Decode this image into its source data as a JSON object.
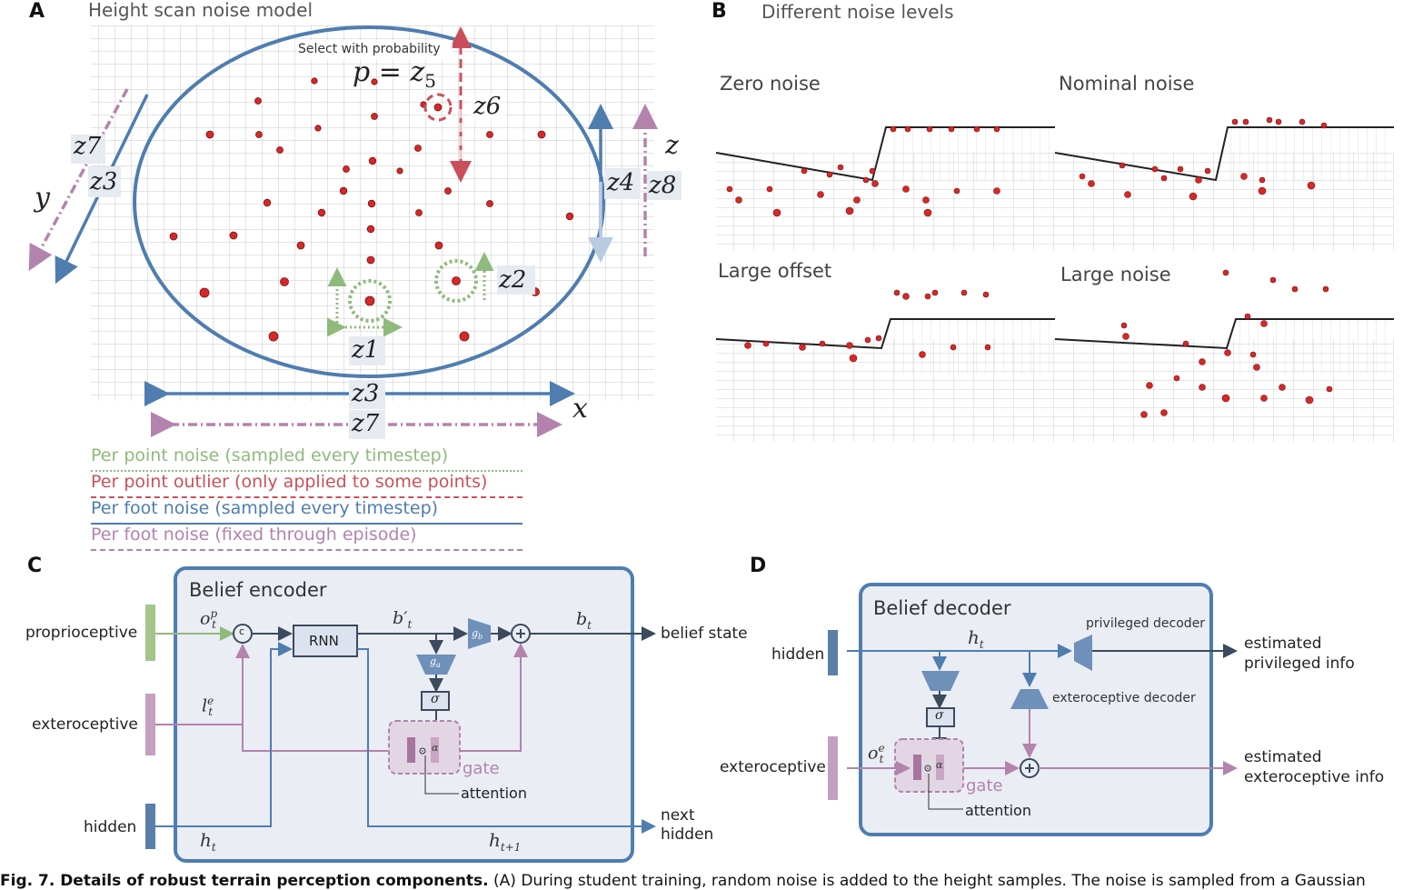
{
  "panel_a": {
    "letter": "A",
    "title": "Height scan noise model",
    "select_text": "Select with probability",
    "p_label": "p = z",
    "p_sub": "5",
    "z_labels": {
      "z6": "z6",
      "z7_left": "z7",
      "z3_left": "z3",
      "z4": "z4",
      "z8": "z8",
      "z2": "z2",
      "z1": "z1",
      "z3_bottom": "z3",
      "z7_bottom": "z7"
    },
    "axes": {
      "x": "x",
      "y": "y",
      "z": "z"
    },
    "legend": [
      {
        "label": "Per point noise (sampled every timestep)",
        "color": "#8fba7c",
        "style": "dotted"
      },
      {
        "label": "Per point outlier (only applied to some points)",
        "color": "#c9505a",
        "style": "dashed"
      },
      {
        "label": "Per foot noise (sampled every timestep)",
        "color": "#4f7db0",
        "style": "solid"
      },
      {
        "label": "Per foot noise (fixed through episode)",
        "color": "#b383ae",
        "style": "dashdot"
      }
    ]
  },
  "panel_b": {
    "letter": "B",
    "title": "Different noise levels",
    "quadrants": [
      "Zero noise",
      "Nominal noise",
      "Large offset",
      "Large noise"
    ]
  },
  "panel_c": {
    "letter": "C",
    "box_title": "Belief encoder",
    "inputs": [
      "proprioceptive",
      "exteroceptive",
      "hidden"
    ],
    "rnn": "RNN",
    "concat": "c",
    "sigma": "σ",
    "alpha": "α",
    "gate": "gate",
    "attention": "attention",
    "g_a": "g",
    "g_a_sub": "a",
    "g_b": "g",
    "g_b_sub": "b",
    "o_t_p": "o",
    "l_t_e": "l",
    "b_t_prime": "b′",
    "b_t": "b",
    "h_t": "h",
    "h_t1": "h",
    "sub_t": "t",
    "sub_t1": "t+1",
    "sup_p": "p",
    "sup_e": "e",
    "outputs": [
      "belief state",
      "next",
      "hidden"
    ]
  },
  "panel_d": {
    "letter": "D",
    "box_title": "Belief decoder",
    "inputs": [
      "hidden",
      "exteroceptive"
    ],
    "privileged_decoder": "privileged decoder",
    "exteroceptive_decoder": "exteroceptive decoder",
    "sigma": "σ",
    "alpha": "α",
    "gate": "gate",
    "attention": "attention",
    "h_t": "h",
    "o_t_e": "o",
    "sub_t": "t",
    "sup_e": "e",
    "outputs": [
      [
        "estimated",
        "privileged info"
      ],
      [
        "estimated",
        "exteroceptive info"
      ]
    ]
  },
  "caption": {
    "bold": "Fig. 7. Details of robust terrain perception components.",
    "text": " (A) During student training, random noise is added to the height samples. The noise is sampled from a Gaussian"
  }
}
